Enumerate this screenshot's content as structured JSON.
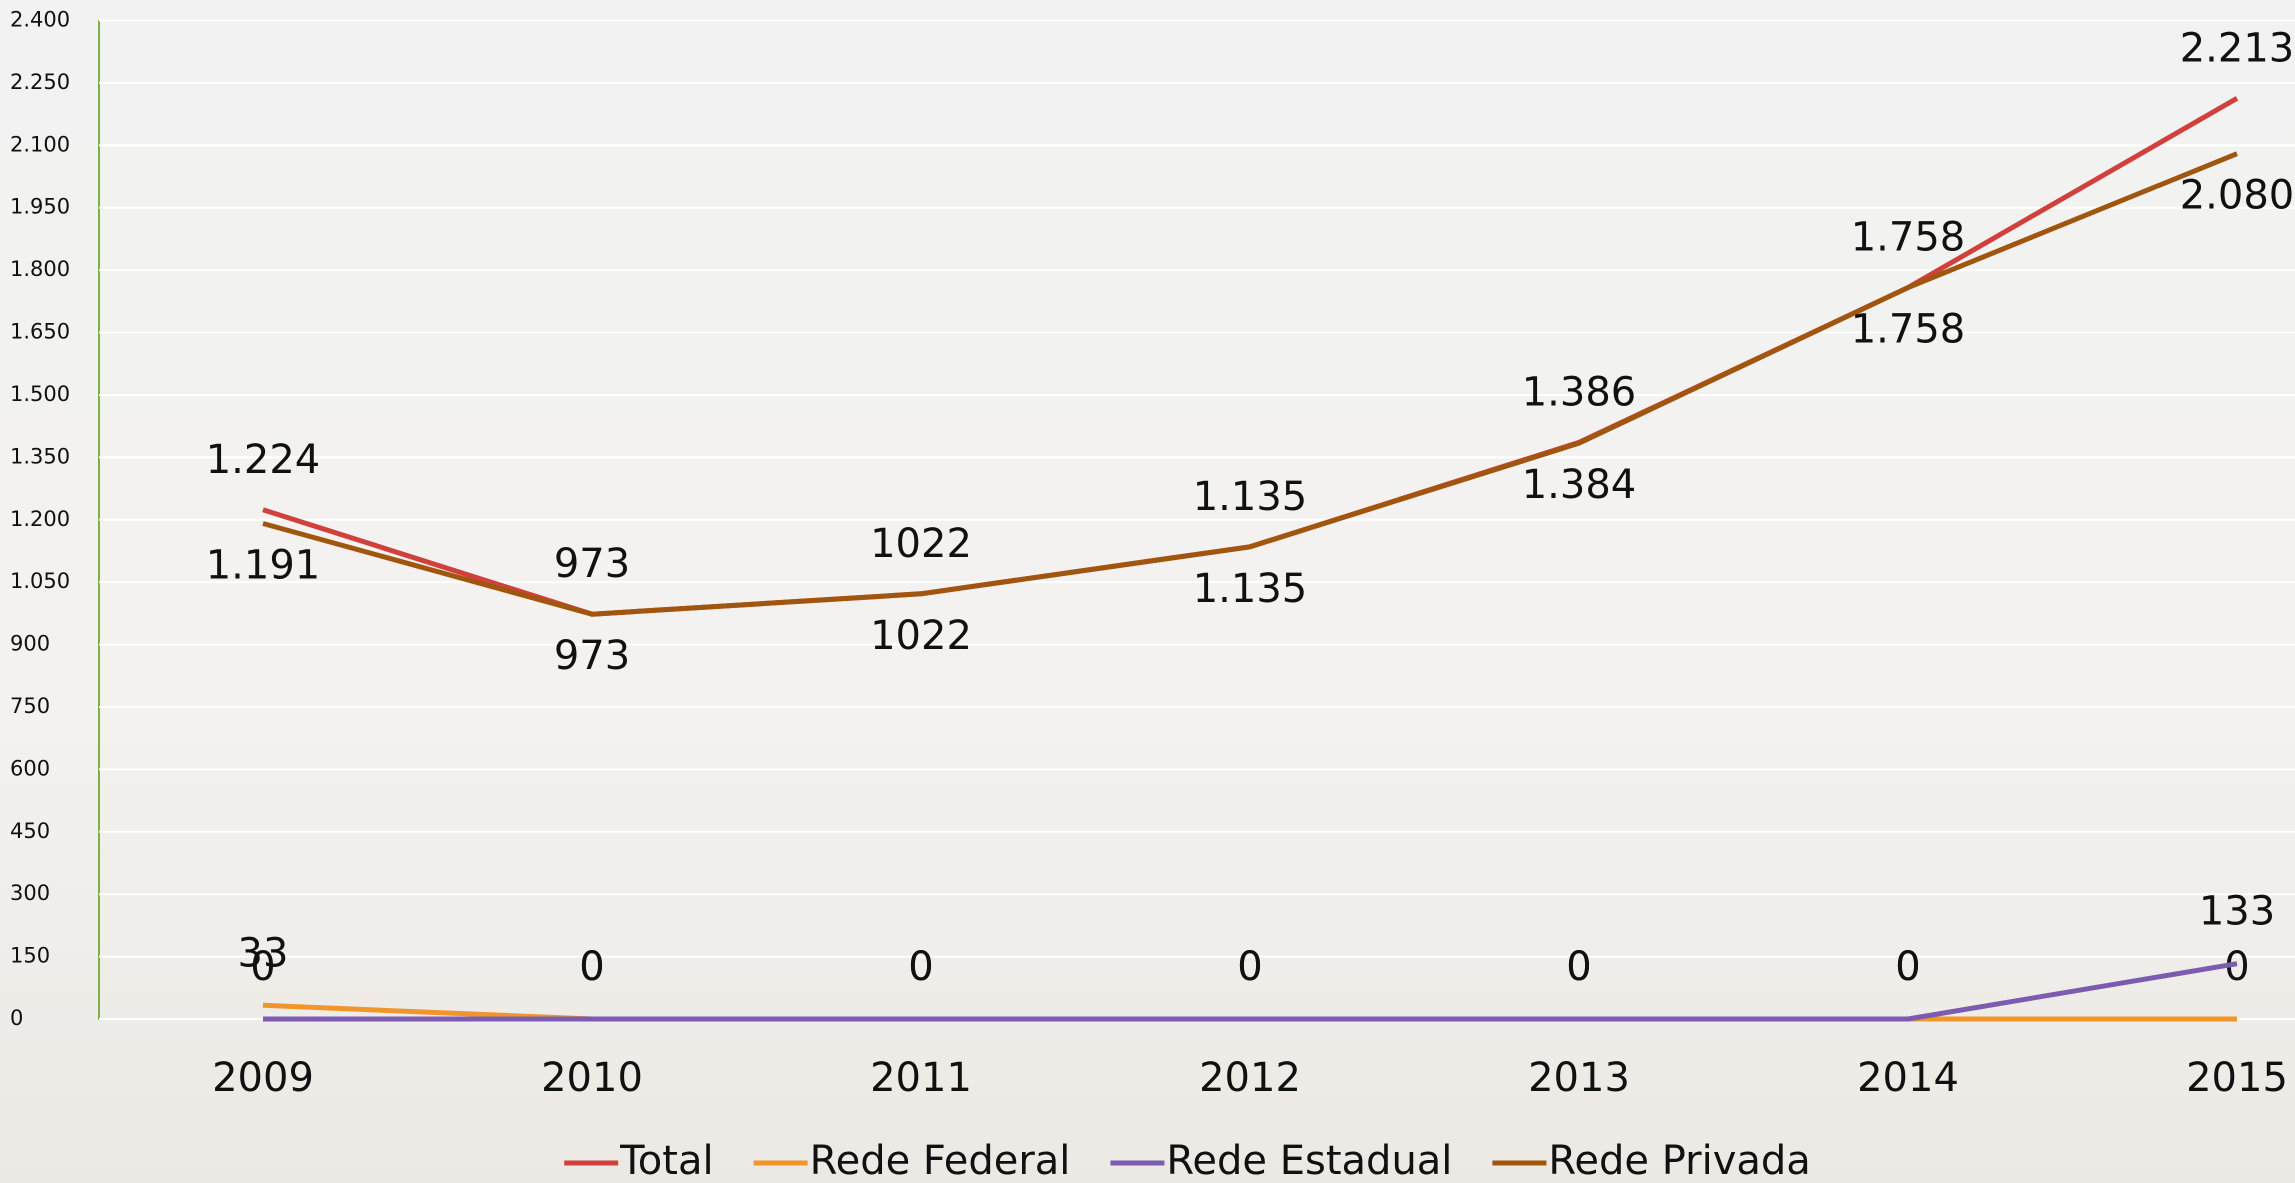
{
  "chart_data": {
    "type": "line",
    "categories": [
      "2009",
      "2010",
      "2011",
      "2012",
      "2013",
      "2014",
      "2015"
    ],
    "series": [
      {
        "name": "Total",
        "color": "#d0403c",
        "values": [
          1224,
          973,
          1022,
          1135,
          1386,
          1758,
          2213
        ],
        "value_labels": [
          "1.224",
          "973",
          "1022",
          "1.135",
          "1.386",
          "1.758",
          "2.213"
        ]
      },
      {
        "name": "Rede Federal",
        "color": "#f0962a",
        "values": [
          33,
          0,
          0,
          0,
          0,
          0,
          0
        ]
      },
      {
        "name": "Rede Estadual",
        "color": "#7b5cb0",
        "values": [
          0,
          0,
          0,
          0,
          0,
          0,
          133
        ]
      },
      {
        "name": "Rede Privada",
        "color": "#a0560e",
        "values": [
          1191,
          973,
          1022,
          1135,
          1384,
          1758,
          2080
        ],
        "value_labels": [
          "1.191",
          "973",
          "1022",
          "1.135",
          "1.384",
          "1.758",
          "2.080"
        ]
      }
    ],
    "ylim": [
      0,
      2400
    ],
    "yticks": [
      0,
      150,
      300,
      450,
      600,
      750,
      900,
      {
        "value": 1050,
        "label": "1.050"
      },
      {
        "value": 1200,
        "label": "1.200"
      },
      {
        "value": 1350,
        "label": "1.350"
      },
      {
        "value": 1500,
        "label": "1.500"
      },
      {
        "value": 1650,
        "label": "1.650"
      },
      {
        "value": 1800,
        "label": "1.800"
      },
      {
        "value": 1950,
        "label": "1.950"
      },
      {
        "value": 2100,
        "label": "2.100"
      },
      {
        "value": 2250,
        "label": "2.250"
      },
      {
        "value": 2400,
        "label": "2.400"
      }
    ],
    "grid": true,
    "legend": "bottom"
  }
}
